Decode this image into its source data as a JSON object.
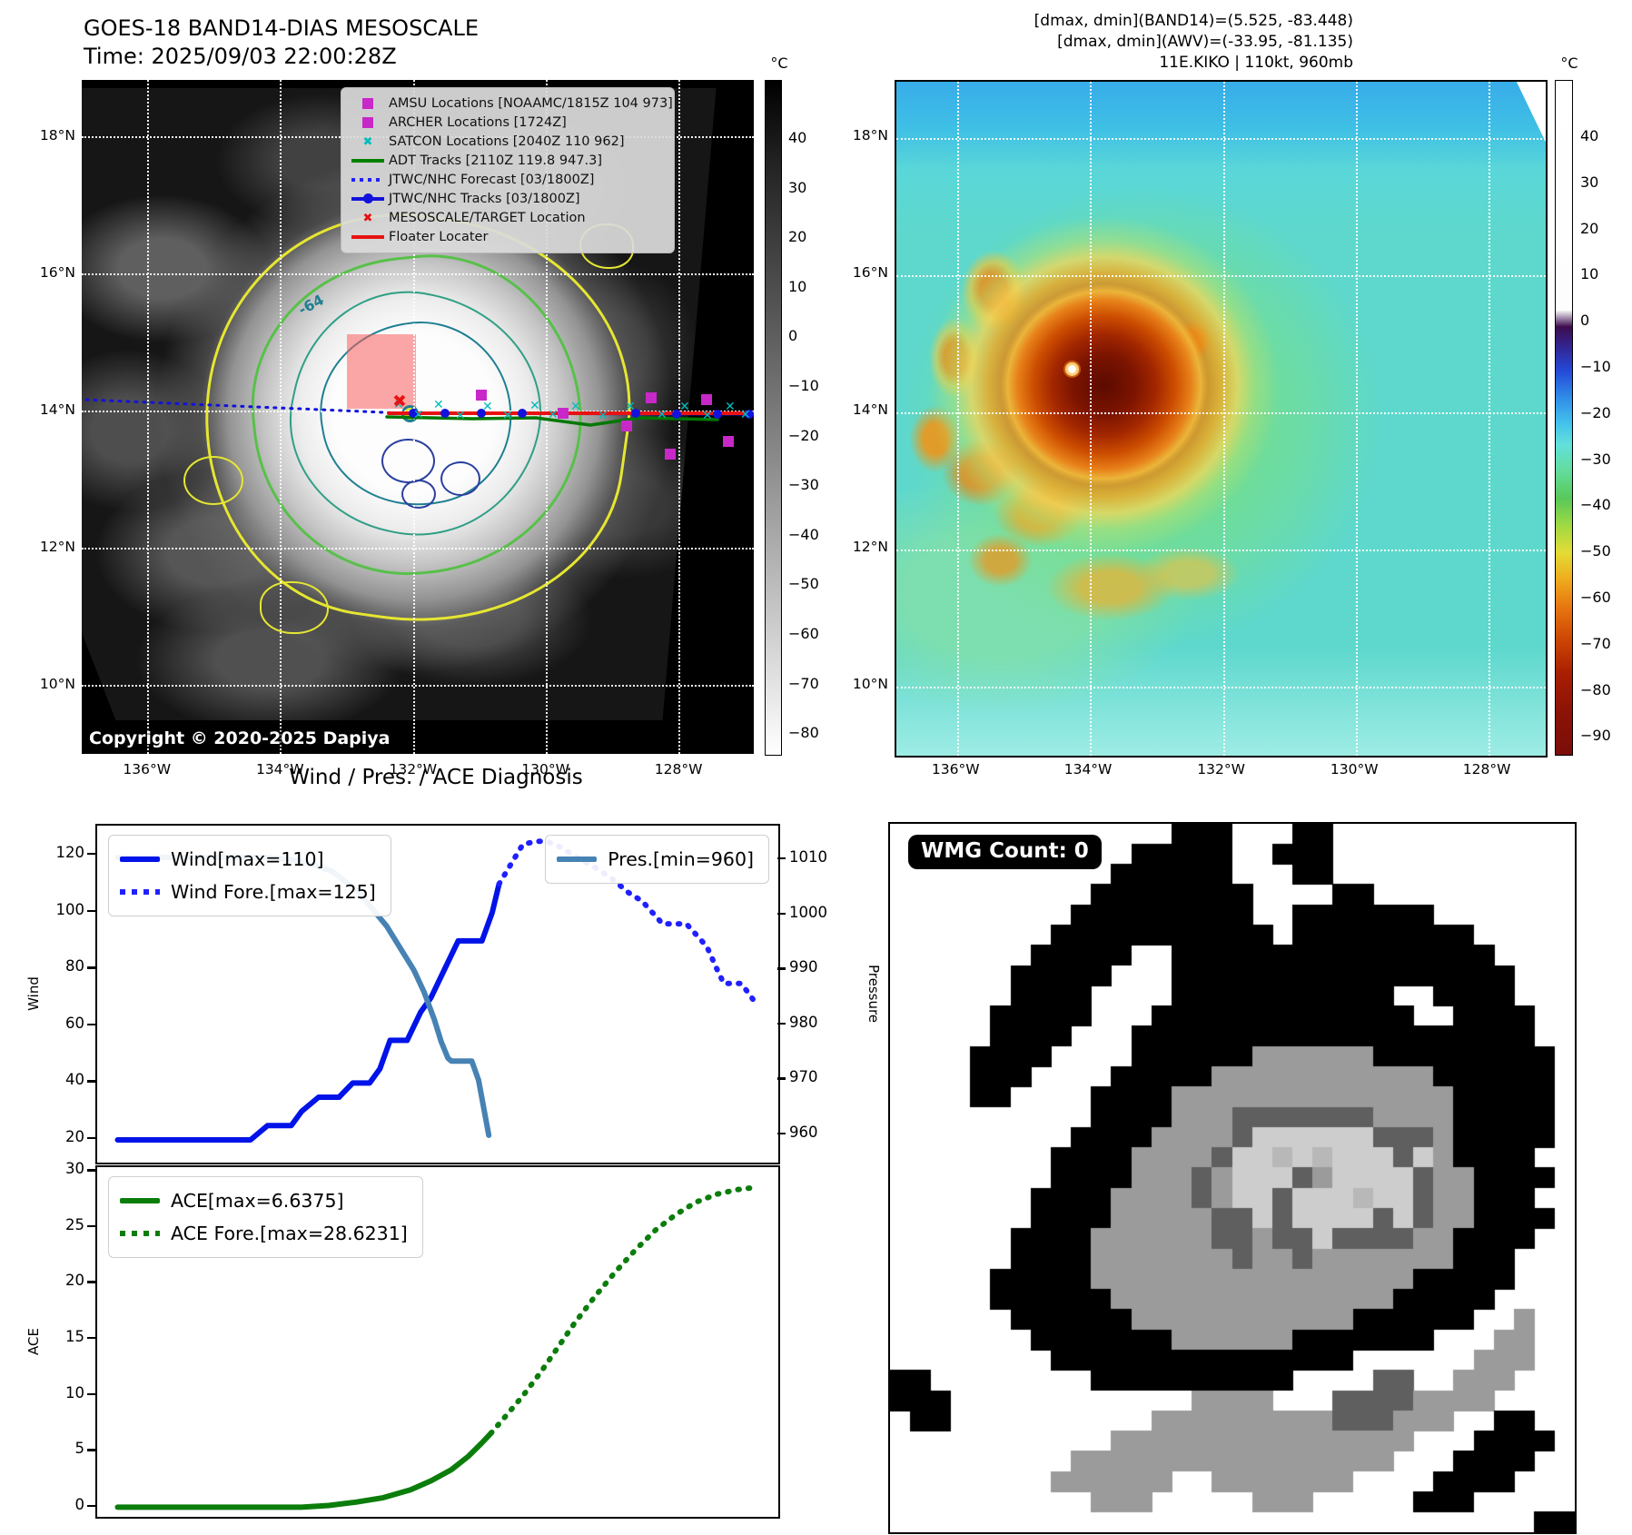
{
  "header": {
    "title_line1": "GOES-18 BAND14-DIAS MESOSCALE",
    "title_line2": "Time: 2025/09/03 22:00:28Z",
    "info_line1": "[dmax, dmin](BAND14)=(5.525, -83.448)",
    "info_line2": "[dmax, dmin](AWV)=(-33.95, -81.135)",
    "info_line3": "11E.KIKO | 110kt, 960mb"
  },
  "colors": {
    "wind": "#0013e8",
    "wind_fore": "#2020ff",
    "pressure": "#4682b4",
    "ace": "#0b7d0b",
    "track_red": "#e81212",
    "track_green": "#007700",
    "track_blue": "#1212dd",
    "satcon_cyan": "#00bcbc",
    "amsu_magenta": "#c828c8"
  },
  "left_map": {
    "copyright": "Copyright © 2020-2025 Dapiya",
    "contour_label": "-64",
    "colorbar_unit": "°C",
    "colorbar_ticks": [
      "40",
      "30",
      "20",
      "10",
      "0",
      "−10",
      "−20",
      "−30",
      "−40",
      "−50",
      "−60",
      "−70",
      "−80"
    ],
    "lat_labels": [
      "18°N",
      "16°N",
      "14°N",
      "12°N",
      "10°N"
    ],
    "lon_labels": [
      "136°W",
      "134°W",
      "132°W",
      "130°W",
      "128°W"
    ],
    "lat_fractions": [
      0.084,
      0.287,
      0.491,
      0.694,
      0.898
    ],
    "lon_fractions": [
      0.097,
      0.295,
      0.493,
      0.69,
      0.888
    ],
    "legend_items": [
      {
        "marker": "square",
        "color": "#c828c8",
        "label": "AMSU Locations [NOAAMC/1815Z 104 973]"
      },
      {
        "marker": "square",
        "color": "#c828c8",
        "label": "ARCHER Locations [1724Z]"
      },
      {
        "marker": "x",
        "color": "#00bcbc",
        "label": "SATCON Locations [2040Z 110 962]"
      },
      {
        "marker": "line",
        "color": "#008000",
        "label": "ADT Tracks [2110Z 119.8 947.3]"
      },
      {
        "marker": "dotted",
        "color": "#2020ff",
        "label": "JTWC/NHC Forecast [03/1800Z]"
      },
      {
        "marker": "linedot",
        "color": "#1212dd",
        "label": "JTWC/NHC Tracks [03/1800Z]"
      },
      {
        "marker": "x",
        "color": "#e81212",
        "label": "MESOSCALE/TARGET Location"
      },
      {
        "marker": "line",
        "color": "#e81212",
        "label": "Floater Locater"
      }
    ],
    "overlays": {
      "forecast_line": [
        [
          5,
          352
        ],
        [
          120,
          357
        ],
        [
          240,
          362
        ],
        [
          355,
          367
        ]
      ],
      "floater_line": [
        [
          338,
          367
        ],
        [
          738,
          367
        ]
      ],
      "jtwc_line": [
        [
          360,
          367
        ],
        [
          738,
          368
        ]
      ],
      "adt_line": [
        [
          336,
          371
        ],
        [
          430,
          373
        ],
        [
          500,
          372
        ],
        [
          560,
          380
        ],
        [
          615,
          372
        ],
        [
          700,
          374
        ]
      ],
      "blue_dots": [
        [
          365,
          367
        ],
        [
          400,
          367
        ],
        [
          440,
          367
        ],
        [
          485,
          367
        ],
        [
          530,
          367
        ],
        [
          610,
          367
        ],
        [
          655,
          368
        ],
        [
          700,
          368
        ],
        [
          735,
          368
        ]
      ],
      "cyan_marks": [
        [
          350,
          360
        ],
        [
          372,
          371
        ],
        [
          394,
          360
        ],
        [
          418,
          372
        ],
        [
          448,
          362
        ],
        [
          470,
          372
        ],
        [
          500,
          361
        ],
        [
          520,
          371
        ],
        [
          545,
          362
        ],
        [
          575,
          372
        ],
        [
          605,
          362
        ],
        [
          640,
          371
        ],
        [
          665,
          362
        ],
        [
          690,
          372
        ],
        [
          715,
          362
        ],
        [
          732,
          371
        ]
      ],
      "magenta_squares": [
        [
          440,
          347
        ],
        [
          530,
          367
        ],
        [
          600,
          381
        ],
        [
          627,
          350
        ],
        [
          688,
          352
        ],
        [
          648,
          412
        ],
        [
          712,
          398
        ]
      ],
      "red_x": [
        352,
        357
      ]
    }
  },
  "right_map": {
    "colorbar_unit": "°C",
    "colorbar_ticks": [
      "40",
      "30",
      "20",
      "10",
      "0",
      "−10",
      "−20",
      "−30",
      "−40",
      "−50",
      "−60",
      "−70",
      "−80",
      "−90"
    ],
    "lat_labels": [
      "18°N",
      "16°N",
      "14°N",
      "12°N",
      "10°N"
    ],
    "lon_labels": [
      "136°W",
      "134°W",
      "132°W",
      "130°W",
      "128°W"
    ],
    "lat_fractions": [
      0.084,
      0.287,
      0.491,
      0.694,
      0.898
    ],
    "lon_fractions": [
      0.094,
      0.298,
      0.503,
      0.708,
      0.912
    ]
  },
  "chart_data": [
    {
      "type": "line",
      "title": "Wind / Pres. / ACE Diagnosis",
      "left_axis": {
        "label": "Wind",
        "ticks": [
          120,
          100,
          80,
          60,
          40,
          20
        ]
      },
      "right_axis": {
        "label": "Pressure",
        "ticks": [
          1010,
          1000,
          990,
          980,
          970,
          960
        ]
      },
      "legend_position": "upper left / upper right",
      "series": [
        {
          "name": "Wind[max=110]",
          "style": "solid",
          "axis": "wind",
          "points": [
            [
              0.03,
              20
            ],
            [
              0.225,
              20
            ],
            [
              0.25,
              25
            ],
            [
              0.285,
              25
            ],
            [
              0.3,
              30
            ],
            [
              0.325,
              35
            ],
            [
              0.355,
              35
            ],
            [
              0.375,
              40
            ],
            [
              0.4,
              40
            ],
            [
              0.415,
              45
            ],
            [
              0.43,
              55
            ],
            [
              0.455,
              55
            ],
            [
              0.475,
              65
            ],
            [
              0.49,
              70
            ],
            [
              0.5,
              75
            ],
            [
              0.53,
              90
            ],
            [
              0.565,
              90
            ],
            [
              0.58,
              100
            ],
            [
              0.59,
              110
            ]
          ]
        },
        {
          "name": "Wind Fore.[max=125]",
          "style": "dotted",
          "axis": "wind",
          "points": [
            [
              0.59,
              110
            ],
            [
              0.61,
              118
            ],
            [
              0.625,
              124
            ],
            [
              0.645,
              125
            ],
            [
              0.66,
              125
            ],
            [
              0.68,
              123
            ],
            [
              0.7,
              120
            ],
            [
              0.73,
              116
            ],
            [
              0.755,
              112
            ],
            [
              0.78,
              107
            ],
            [
              0.8,
              104
            ],
            [
              0.815,
              100
            ],
            [
              0.83,
              96
            ],
            [
              0.865,
              96
            ],
            [
              0.88,
              92
            ],
            [
              0.895,
              88
            ],
            [
              0.91,
              80
            ],
            [
              0.92,
              75
            ],
            [
              0.945,
              75
            ],
            [
              0.955,
              72
            ],
            [
              0.97,
              67
            ]
          ]
        },
        {
          "name": "Pres.[min=960]",
          "style": "solid",
          "axis": "pressure",
          "points": [
            [
              0.03,
              1010.5
            ],
            [
              0.25,
              1010.5
            ],
            [
              0.29,
              1010
            ],
            [
              0.32,
              1009
            ],
            [
              0.345,
              1008
            ],
            [
              0.365,
              1006
            ],
            [
              0.385,
              1004
            ],
            [
              0.405,
              1001
            ],
            [
              0.425,
              998
            ],
            [
              0.445,
              994
            ],
            [
              0.465,
              990
            ],
            [
              0.48,
              986
            ],
            [
              0.495,
              981
            ],
            [
              0.505,
              977
            ],
            [
              0.515,
              974
            ],
            [
              0.52,
              973.5
            ],
            [
              0.55,
              973.5
            ],
            [
              0.56,
              970
            ],
            [
              0.575,
              960
            ]
          ]
        }
      ]
    },
    {
      "type": "line",
      "left_axis": {
        "label": "ACE",
        "ticks": [
          30,
          25,
          20,
          15,
          10,
          5,
          0
        ]
      },
      "series": [
        {
          "name": "ACE[max=6.6375]",
          "style": "solid",
          "axis": "ace",
          "points": [
            [
              0.03,
              0.05
            ],
            [
              0.3,
              0.05
            ],
            [
              0.34,
              0.2
            ],
            [
              0.38,
              0.5
            ],
            [
              0.42,
              0.9
            ],
            [
              0.46,
              1.6
            ],
            [
              0.49,
              2.4
            ],
            [
              0.52,
              3.4
            ],
            [
              0.545,
              4.6
            ],
            [
              0.565,
              5.8
            ],
            [
              0.578,
              6.64
            ]
          ]
        },
        {
          "name": "ACE Fore.[max=28.6231]",
          "style": "dotted",
          "axis": "ace",
          "points": [
            [
              0.578,
              6.64
            ],
            [
              0.6,
              8.2
            ],
            [
              0.625,
              10
            ],
            [
              0.65,
              12
            ],
            [
              0.675,
              14.2
            ],
            [
              0.7,
              16.4
            ],
            [
              0.73,
              18.8
            ],
            [
              0.76,
              21
            ],
            [
              0.79,
              23
            ],
            [
              0.82,
              24.8
            ],
            [
              0.85,
              26.2
            ],
            [
              0.88,
              27.3
            ],
            [
              0.91,
              28
            ],
            [
              0.94,
              28.4
            ],
            [
              0.97,
              28.62
            ]
          ]
        }
      ]
    }
  ],
  "wmg": {
    "label": "WMG Count: 0",
    "palette": {
      "K": "#000000",
      "g": "#9b9b9b",
      "d": "#5f5f5f",
      "l": "#cdcdcd",
      "m": "#b8b8b8"
    },
    "grid": [
      "..............KKK...KK............",
      "............KKKKK..KKK............",
      "...........KKKKKK...KK............",
      "..........KKKKKKKK....KK..........",
      ".........KKKKKKKKK..KKKKKKK.......",
      "........KKKKKKKKKKK.KKKKKKKKK.....",
      ".......KKKKK..KKKKKKKKKKKKKKKK....",
      "......KKKKK...KKKKKKKKKKKKKKKKK...",
      "......KKKK....KKKKKKKKKKK..KKKK...",
      ".....KKKKK...KKKKKKKKKKKKK..KKKK..",
      ".....KKKK...KKKKKKKKKKKKKKKKKKKK..",
      "....KKKK....KKKKKKggggggKKKKKKKKK.",
      "....KKK....KKKKKgggggggggggKKKKKK.",
      "....KK....KKKKggggggggggggggKKKKK.",
      "..........KKKKgggdddddddggggKKKKK.",
      ".........KKKKggggdlllllldddgKKKKK.",
      "........KKKKggggdllmlmllldlgKKKK..",
      "........KKKKgggdgllldglllldggKKKK.",
      ".......KKKKggggdglldlllmlldggKKK..",
      ".......KKKKgggggddldlllldldggKKKK.",
      "......KKKKggggggddgddlddddggKKKK..",
      "......KKKKgggggggdggdgggggggKKK...",
      ".....KKKKKggggggggggggggggKKKKK...",
      ".....KKKKKKggggggggggggggKKKKK....",
      "......KKKKKKgggggggggggKKKKKK..g..",
      ".......KKKKKKKggggggKKKKKKK...gg..",
      "........KKKKKKKKKKKKKKK......ggg..",
      "KK........KKKKKKKKKK....dd..ggg...",
      "KKK............gggg...ddddgggg....",
      ".KK..........gggggggggdddggg..KK..",
      "...........ggggggggggggggg...KKKK.",
      ".........gggggggggggggggg...KKKK..",
      "........gggggg..ggggggg....KKKK...",
      "..........ggg.....ggg.....KKK.....",
      "................................KK"
    ]
  }
}
